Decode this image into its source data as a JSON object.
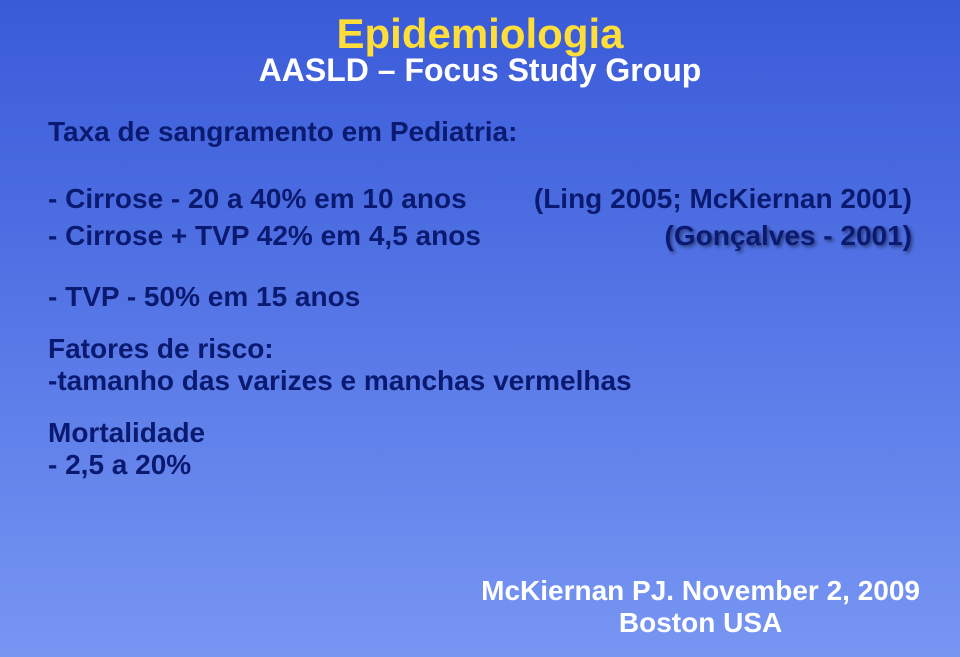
{
  "title_main": "Epidemiologia",
  "title_sub": "AASLD – Focus Study Group",
  "section_heading": "Taxa de sangramento em Pediatria:",
  "lines": {
    "l1_left": "- Cirrose - 20 a 40% em 10 anos",
    "l1_right": "(Ling 2005; McKiernan 2001)",
    "l2_left": "- Cirrose + TVP 42% em 4,5 anos",
    "l2_right": "(Gonçalves - 2001)",
    "l3": "- TVP - 50% em 15 anos"
  },
  "risk": {
    "heading": "Fatores de risco:",
    "item": "-tamanho das varizes e manchas vermelhas"
  },
  "mortality": {
    "heading": "Mortalidade",
    "value": "- 2,5 a 20%"
  },
  "citation": {
    "line1": "McKiernan PJ. November 2, 2009",
    "line2": "Boston USA"
  }
}
